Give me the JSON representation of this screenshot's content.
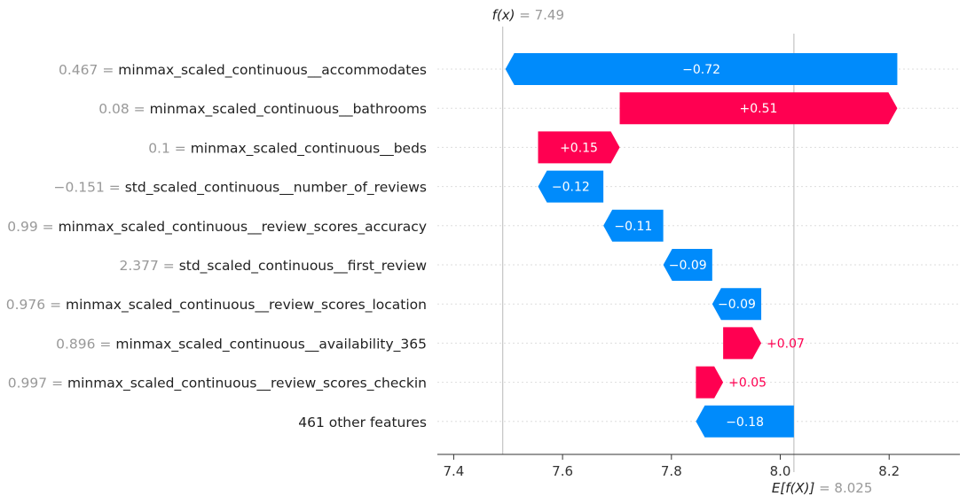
{
  "chart_data": {
    "type": "waterfall",
    "base_value": 8.025,
    "final_value": 7.49,
    "fx_label": "f(x)",
    "fx_text": "= 7.49",
    "efx_label": "E[f(X)]",
    "efx_text": "= 8.025",
    "xlim": [
      7.37,
      8.33
    ],
    "x_ticks": [
      7.4,
      7.6,
      7.8,
      8.0,
      8.2
    ],
    "x_tick_labels": [
      "7.4",
      "7.6",
      "7.8",
      "8.0",
      "8.2"
    ],
    "colors": {
      "positive": "#ff0051",
      "negative": "#008bfb"
    },
    "features": [
      {
        "value": "0.467",
        "name": "minmax_scaled_continuous__accommodates",
        "contribution": -0.72,
        "label": "−0.72"
      },
      {
        "value": "0.08",
        "name": "minmax_scaled_continuous__bathrooms",
        "contribution": 0.51,
        "label": "+0.51"
      },
      {
        "value": "0.1",
        "name": "minmax_scaled_continuous__beds",
        "contribution": 0.15,
        "label": "+0.15"
      },
      {
        "value": "−0.151",
        "name": "std_scaled_continuous__number_of_reviews",
        "contribution": -0.12,
        "label": "−0.12"
      },
      {
        "value": "0.99",
        "name": "minmax_scaled_continuous__review_scores_accuracy",
        "contribution": -0.11,
        "label": "−0.11"
      },
      {
        "value": "2.377",
        "name": "std_scaled_continuous__first_review",
        "contribution": -0.09,
        "label": "−0.09"
      },
      {
        "value": "0.976",
        "name": "minmax_scaled_continuous__review_scores_location",
        "contribution": -0.09,
        "label": "−0.09"
      },
      {
        "value": "0.896",
        "name": "minmax_scaled_continuous__availability_365",
        "contribution": 0.07,
        "label": "+0.07"
      },
      {
        "value": "0.997",
        "name": "minmax_scaled_continuous__review_scores_checkin",
        "contribution": 0.05,
        "label": "+0.05"
      },
      {
        "value": "",
        "name": "461 other features",
        "contribution": -0.18,
        "label": "−0.18"
      }
    ]
  }
}
